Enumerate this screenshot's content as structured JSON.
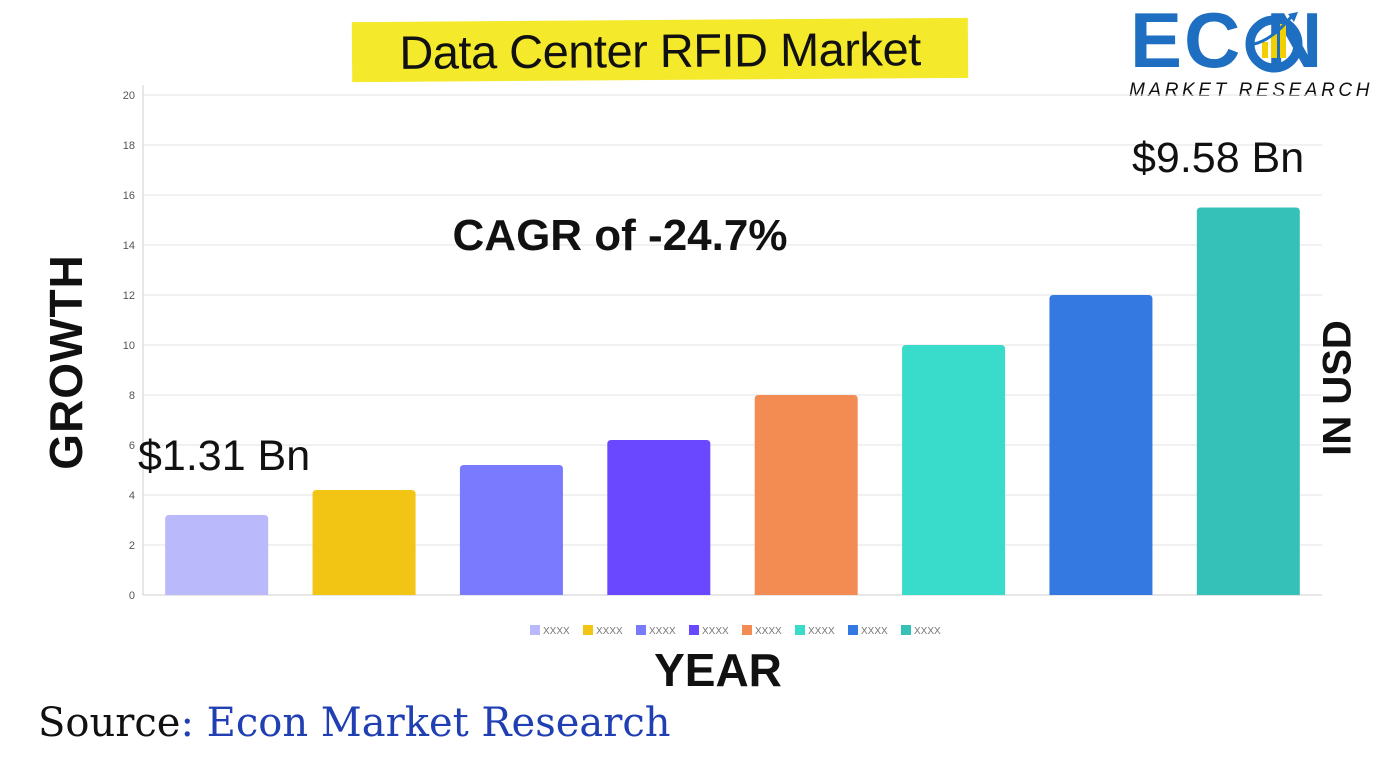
{
  "title": "Data Center RFID Market",
  "logo": {
    "word": "EC N",
    "tagline": "MARKET RESEARCH",
    "color": "#1e6fc2"
  },
  "annotations": {
    "cagr": "CAGR of -24.7%",
    "start_value": "$1.31 Bn",
    "end_value": "$9.58 Bn"
  },
  "source": {
    "label": "Source",
    "brand": ": Econ Market Research"
  },
  "chart_data": {
    "type": "bar",
    "xlabel": "YEAR",
    "ylabel": "GROWTH",
    "ylabel_right": "IN USD",
    "ylim": [
      0,
      20
    ],
    "yticks": [
      0,
      2,
      4,
      6,
      8,
      10,
      12,
      14,
      16,
      18,
      20
    ],
    "grid": true,
    "legend_position": "bottom",
    "series": [
      {
        "name": "XXXX",
        "value": 3.2,
        "color": "#b9b9fb"
      },
      {
        "name": "XXXX",
        "value": 4.2,
        "color": "#f2c414"
      },
      {
        "name": "XXXX",
        "value": 5.2,
        "color": "#7a7aff"
      },
      {
        "name": "XXXX",
        "value": 6.2,
        "color": "#6a48ff"
      },
      {
        "name": "XXXX",
        "value": 8.0,
        "color": "#f28c52"
      },
      {
        "name": "XXXX",
        "value": 10.0,
        "color": "#39dccb"
      },
      {
        "name": "XXXX",
        "value": 12.0,
        "color": "#3479e2"
      },
      {
        "name": "XXXX",
        "value": 15.5,
        "color": "#35c1b8"
      }
    ]
  }
}
